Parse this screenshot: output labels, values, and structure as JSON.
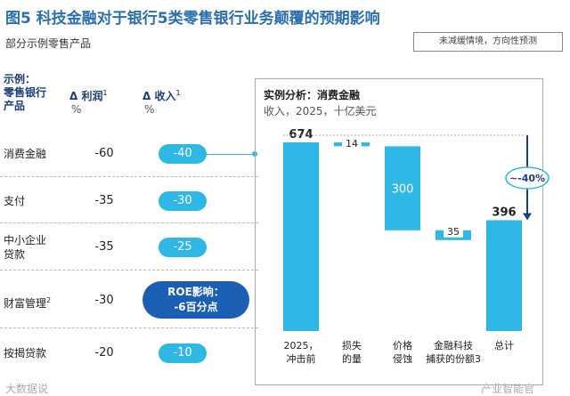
{
  "title": "图5 科技金融对于银行5类零售银行业务颠覆的预期影响",
  "subtitle": "部分示例零售产品",
  "note": "未减缓情境，方向性预测",
  "table": {
    "header_col1_line1": "示例：",
    "header_col1_line2": "零售银行",
    "header_col1_line3": "产品",
    "header_col2": "Δ 利润",
    "header_col2_sup": "1",
    "header_col2_unit": "%",
    "header_col3": "Δ 收入",
    "header_col3_sup": "1",
    "header_col3_unit": "%",
    "rows": [
      {
        "product": "消费金融",
        "profit": "-60",
        "revenue": "-40"
      },
      {
        "product": "支付",
        "profit": "-35",
        "revenue": "-30"
      },
      {
        "product_line1": "中小企业",
        "product_line2": "贷款",
        "profit": "-35",
        "revenue": "-25"
      },
      {
        "product": "财富管理",
        "product_sup": "2",
        "profit": "-30",
        "revenue_line1": "ROE影响：",
        "revenue_line2": "-6百分点"
      },
      {
        "product": "按揭贷款",
        "profit": "-20",
        "revenue": "-10"
      }
    ]
  },
  "panel": {
    "title": "实例分析：消费金融",
    "subtitle": "收入，2025，十亿美元",
    "change_badge": "~-40%"
  },
  "chart_data": {
    "type": "bar",
    "subtype": "waterfall",
    "title": "实例分析：消费金融",
    "ylabel": "收入，2025，十亿美元",
    "categories": [
      "2025，冲击前",
      "损失的量",
      "价格侵蚀",
      "金融科技捕获的份额",
      "总计"
    ],
    "category_lines": [
      [
        "2025，",
        "冲击前"
      ],
      [
        "损失",
        "的量"
      ],
      [
        "价格",
        "侵蚀"
      ],
      [
        "金融科技",
        "捕获的份额3"
      ],
      [
        "总计"
      ]
    ],
    "values": [
      674,
      -14,
      -300,
      35,
      396
    ],
    "labels": [
      "674",
      "14",
      "300",
      "35",
      "396"
    ],
    "change_annotation": "~-40%",
    "colors": {
      "bar": "#2fb8e6",
      "arrow": "#1b3f7a"
    }
  },
  "watermarks": {
    "left": "大数据说",
    "right": "产业智能官"
  },
  "colors": {
    "title": "#2a6fb0",
    "accent": "#2fb8e6",
    "dark": "#1a5fb4"
  }
}
